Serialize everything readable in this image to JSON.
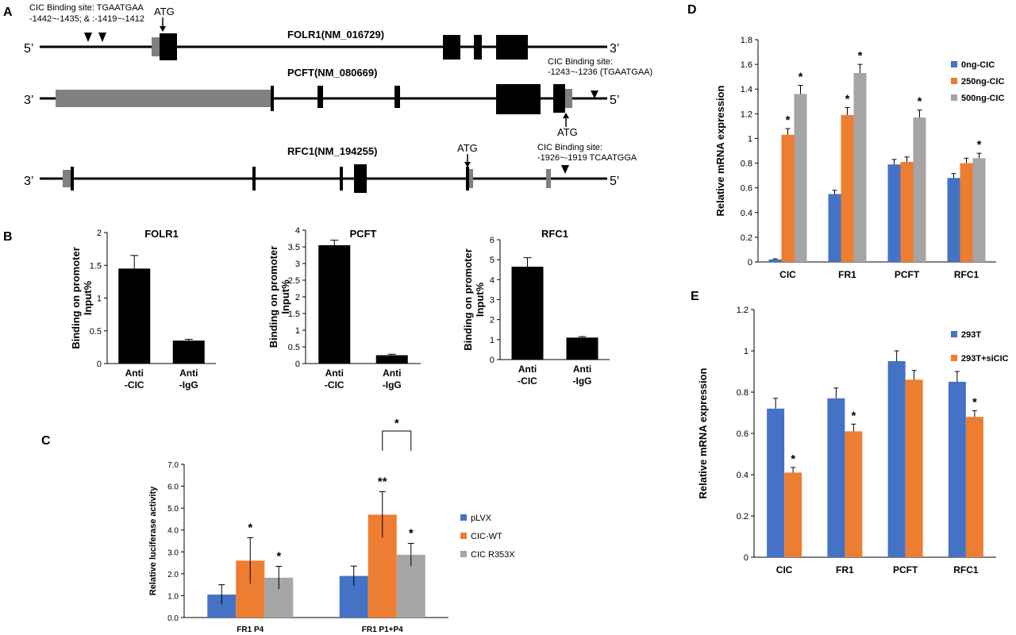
{
  "panels": {
    "A": {
      "letter": "A",
      "genes": [
        {
          "name": "FOLR1(NM_016729)",
          "left_end": "5’",
          "right_end": "3’",
          "atg": "ATG",
          "site_line1": "CIC Binding site: TGAATGAA",
          "site_line2": "-1442~-1435; & :-1419~-1412"
        },
        {
          "name": "PCFT(NM_080669)",
          "left_end": "3’",
          "right_end": "5’",
          "atg": "ATG",
          "site_line1": "CIC Binding site:",
          "site_line2": "-1243~-1236 (TGAATGAA)"
        },
        {
          "name": "RFC1(NM_194255)",
          "left_end": "3’",
          "right_end": "5’",
          "atg": "ATG",
          "site_line1": "CIC Binding site:",
          "site_line2": "-1926~-1919 TCAATGGA"
        }
      ]
    },
    "B": {
      "letter": "B"
    },
    "C": {
      "letter": "C"
    },
    "D": {
      "letter": "D"
    },
    "E": {
      "letter": "E"
    }
  },
  "chart_data": [
    {
      "id": "B1",
      "type": "bar",
      "title": "FOLR1",
      "ylabel_line1": "Binding on promoter",
      "ylabel_line2": "Input%",
      "categories": [
        [
          "Anti",
          "-CIC"
        ],
        [
          "Anti",
          "-IgG"
        ]
      ],
      "values": [
        1.45,
        0.35
      ],
      "errors": [
        0.2,
        0.02
      ],
      "ylim": [
        0,
        2
      ],
      "yticks": [
        "0",
        "0.5",
        "1",
        "1.5",
        "2"
      ],
      "ytick_values": [
        0,
        0.5,
        1,
        1.5,
        2
      ],
      "bar_color": "#000000"
    },
    {
      "id": "B2",
      "type": "bar",
      "title": "PCFT",
      "ylabel_line1": "Binding on promoter",
      "ylabel_line2": "Input%",
      "categories": [
        [
          "Anti",
          "-CIC"
        ],
        [
          "Anti",
          "-IgG"
        ]
      ],
      "values": [
        3.55,
        0.25
      ],
      "errors": [
        0.15,
        0.03
      ],
      "ylim": [
        0,
        4
      ],
      "yticks": [
        "0",
        "0.5",
        "1",
        "1.5",
        "2",
        "2.5",
        "3",
        "3.5",
        "4"
      ],
      "ytick_values": [
        0,
        0.5,
        1,
        1.5,
        2,
        2.5,
        3,
        3.5,
        4
      ],
      "bar_color": "#000000"
    },
    {
      "id": "B3",
      "type": "bar",
      "title": "RFC1",
      "ylabel_line1": "Binding on promoter",
      "ylabel_line2": "Input%",
      "categories": [
        [
          "Anti",
          "-CIC"
        ],
        [
          "Anti",
          "-IgG"
        ]
      ],
      "values": [
        4.65,
        1.1
      ],
      "errors": [
        0.45,
        0.05
      ],
      "ylim": [
        0,
        6
      ],
      "yticks": [
        "0",
        "1",
        "2",
        "3",
        "4",
        "5",
        "6"
      ],
      "ytick_values": [
        0,
        1,
        2,
        3,
        4,
        5,
        6
      ],
      "bar_color": "#000000"
    },
    {
      "id": "C",
      "type": "bar",
      "ylabel": "Relative luciferase activity",
      "categories": [
        "FR1 P4",
        "FR1 P1+P4"
      ],
      "series": [
        {
          "name": "pLVX",
          "color": "#4472C4",
          "values": [
            1.05,
            1.9
          ],
          "errors": [
            0.45,
            0.45
          ],
          "stars": [
            "",
            ""
          ]
        },
        {
          "name": "CIC-WT",
          "color": "#ED7D31",
          "values": [
            2.6,
            4.7
          ],
          "errors": [
            1.05,
            1.05
          ],
          "stars": [
            "*",
            "**"
          ]
        },
        {
          "name": "CIC R353X",
          "color": "#A5A5A5",
          "values": [
            1.82,
            2.87
          ],
          "errors": [
            0.52,
            0.52
          ],
          "stars": [
            "*",
            "*"
          ]
        }
      ],
      "bracket_star": "*",
      "ylim": [
        0,
        7
      ],
      "yticks": [
        "0.0",
        "1.0",
        "2.0",
        "3.0",
        "4.0",
        "5.0",
        "6.0",
        "7.0"
      ],
      "ytick_values": [
        0,
        1,
        2,
        3,
        4,
        5,
        6,
        7
      ],
      "legend": "right"
    },
    {
      "id": "D",
      "type": "bar",
      "ylabel": "Relative mRNA expression",
      "categories": [
        "CIC",
        "FR1",
        "PCFT",
        "RFC1"
      ],
      "series": [
        {
          "name": "0ng-CIC",
          "color": "#4472C4",
          "values": [
            0.02,
            0.55,
            0.79,
            0.68
          ],
          "errors": [
            0.005,
            0.03,
            0.04,
            0.035
          ],
          "stars": [
            "",
            "",
            "",
            ""
          ]
        },
        {
          "name": "250ng-CIC",
          "color": "#ED7D31",
          "values": [
            1.03,
            1.19,
            0.81,
            0.8
          ],
          "errors": [
            0.05,
            0.06,
            0.04,
            0.04
          ],
          "stars": [
            "*",
            "*",
            "",
            ""
          ]
        },
        {
          "name": "500ng-CIC",
          "color": "#A5A5A5",
          "values": [
            1.36,
            1.53,
            1.17,
            0.84
          ],
          "errors": [
            0.07,
            0.07,
            0.06,
            0.04
          ],
          "stars": [
            "*",
            "*",
            "*",
            "*"
          ]
        }
      ],
      "ylim": [
        0,
        1.8
      ],
      "yticks": [
        "0",
        "0.2",
        "0.4",
        "0.6",
        "0.8",
        "1",
        "1.2",
        "1.4",
        "1.6",
        "1.8"
      ],
      "ytick_values": [
        0,
        0.2,
        0.4,
        0.6,
        0.8,
        1,
        1.2,
        1.4,
        1.6,
        1.8
      ],
      "legend": "right"
    },
    {
      "id": "E",
      "type": "bar",
      "ylabel": "Relative mRNA expression",
      "categories": [
        "CIC",
        "FR1",
        "PCFT",
        "RFC1"
      ],
      "series": [
        {
          "name": "293T",
          "color": "#4472C4",
          "values": [
            0.72,
            0.77,
            0.95,
            0.85
          ],
          "errors": [
            0.05,
            0.05,
            0.05,
            0.05
          ],
          "stars": [
            "",
            "",
            "",
            ""
          ]
        },
        {
          "name": "293T+siCIC",
          "color": "#ED7D31",
          "values": [
            0.41,
            0.61,
            0.86,
            0.68
          ],
          "errors": [
            0.025,
            0.035,
            0.045,
            0.03
          ],
          "stars": [
            "*",
            "*",
            "",
            "*"
          ]
        }
      ],
      "ylim": [
        0,
        1.2
      ],
      "yticks": [
        "0",
        "0.2",
        "0.4",
        "0.6",
        "0.8",
        "1",
        "1.2"
      ],
      "ytick_values": [
        0,
        0.2,
        0.4,
        0.6,
        0.8,
        1,
        1.2
      ],
      "legend": "right"
    }
  ]
}
